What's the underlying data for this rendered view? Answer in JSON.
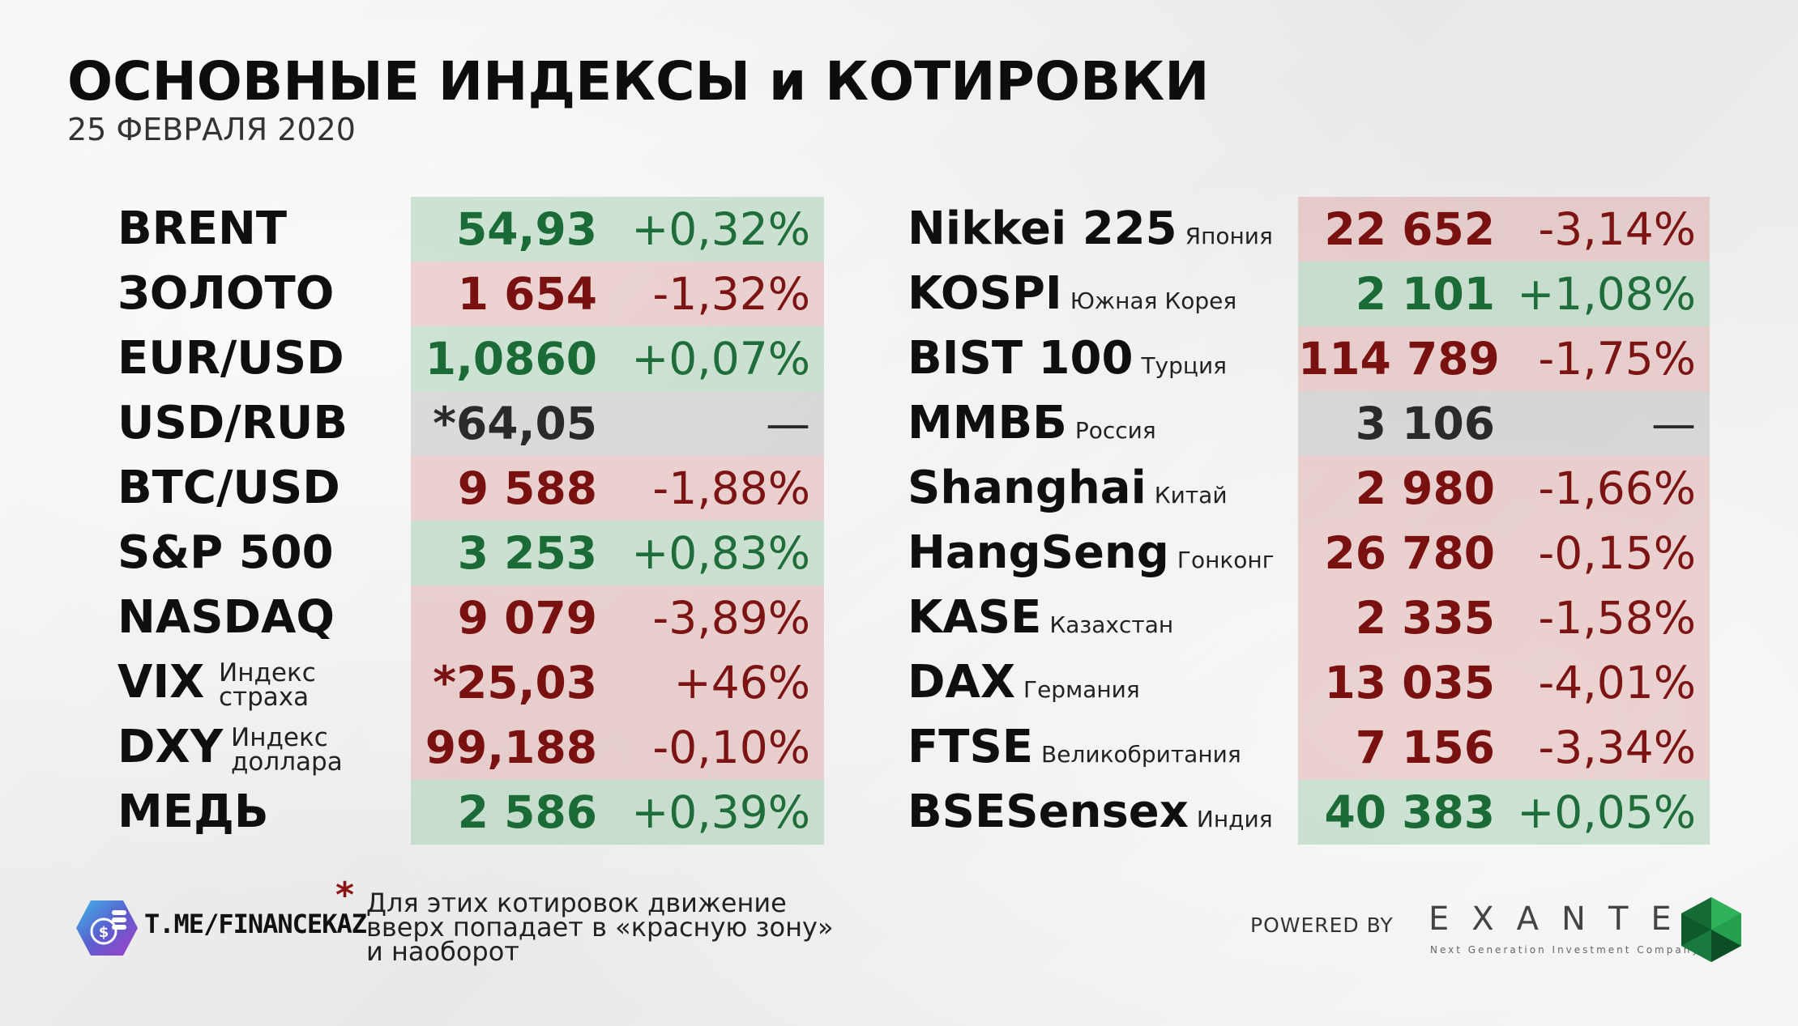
{
  "header": {
    "title": "ОСНОВНЫЕ ИНДЕКСЫ и КОТИРОВКИ",
    "date": "25 ФЕВРАЛЯ 2020"
  },
  "left_table": [
    {
      "name": "BRENT",
      "sub1": "",
      "sub2": "",
      "value": "54,93",
      "change": "+0,32%",
      "trend": "up"
    },
    {
      "name": "ЗОЛОТО",
      "sub1": "",
      "sub2": "",
      "value": "1 654",
      "change": "-1,32%",
      "trend": "down"
    },
    {
      "name": "EUR/USD",
      "sub1": "",
      "sub2": "",
      "value": "1,0860",
      "change": "+0,07%",
      "trend": "up"
    },
    {
      "name": "USD/RUB",
      "sub1": "",
      "sub2": "",
      "value": "*64,05",
      "change": "—",
      "trend": "flat"
    },
    {
      "name": "BTC/USD",
      "sub1": "",
      "sub2": "",
      "value": "9 588",
      "change": "-1,88%",
      "trend": "down"
    },
    {
      "name": "S&P 500",
      "sub1": "",
      "sub2": "",
      "value": "3 253",
      "change": "+0,83%",
      "trend": "up"
    },
    {
      "name": "NASDAQ",
      "sub1": "",
      "sub2": "",
      "value": "9 079",
      "change": "-3,89%",
      "trend": "down"
    },
    {
      "name": "VIX",
      "sub1": "Индекс",
      "sub2": "страха",
      "value": "*25,03",
      "change": "+46%",
      "trend": "down"
    },
    {
      "name": "DXY",
      "sub1": "Индекс",
      "sub2": "доллара",
      "value": "99,188",
      "change": "-0,10%",
      "trend": "down"
    },
    {
      "name": "МЕДЬ",
      "sub1": "",
      "sub2": "",
      "value": "2 586",
      "change": "+0,39%",
      "trend": "up"
    }
  ],
  "right_table": [
    {
      "name": "Nikkei 225",
      "sub": "Япония",
      "value": "22 652",
      "change": "-3,14%",
      "trend": "down"
    },
    {
      "name": "KOSPI",
      "sub": "Южная Корея",
      "value": "2 101",
      "change": "+1,08%",
      "trend": "up"
    },
    {
      "name": "BIST 100",
      "sub": "Турция",
      "value": "114 789",
      "change": "-1,75%",
      "trend": "down"
    },
    {
      "name": "ММВБ",
      "sub": "Россия",
      "value": "3 106",
      "change": "—",
      "trend": "flat"
    },
    {
      "name": "Shanghai",
      "sub": "Китай",
      "value": "2 980",
      "change": "-1,66%",
      "trend": "down"
    },
    {
      "name": "HangSeng",
      "sub": "Гонконг",
      "value": "26 780",
      "change": "-0,15%",
      "trend": "down"
    },
    {
      "name": "KASE",
      "sub": "Казахстан",
      "value": "2 335",
      "change": "-1,58%",
      "trend": "down"
    },
    {
      "name": "DAX",
      "sub": "Германия",
      "value": "13 035",
      "change": "-4,01%",
      "trend": "down"
    },
    {
      "name": "FTSE",
      "sub": "Великобритания",
      "value": "7 156",
      "change": "-3,34%",
      "trend": "down"
    },
    {
      "name": "BSESensex",
      "sub": "Индия",
      "value": "40 383",
      "change": "+0,05%",
      "trend": "up"
    }
  ],
  "footer": {
    "channel": "T.ME/FINANCEKAZ",
    "star": "*",
    "note_lines": [
      "Для этих котировок движение",
      "вверх попадает в «красную зону»",
      "и наоборот"
    ],
    "powered_by": "POWERED BY",
    "brand": "EXANTE",
    "brand_tagline": "Next Generation Investment Company"
  },
  "colors": {
    "up": "#1a6b35",
    "down": "#7a1111",
    "flat": "#2a2a2a"
  }
}
